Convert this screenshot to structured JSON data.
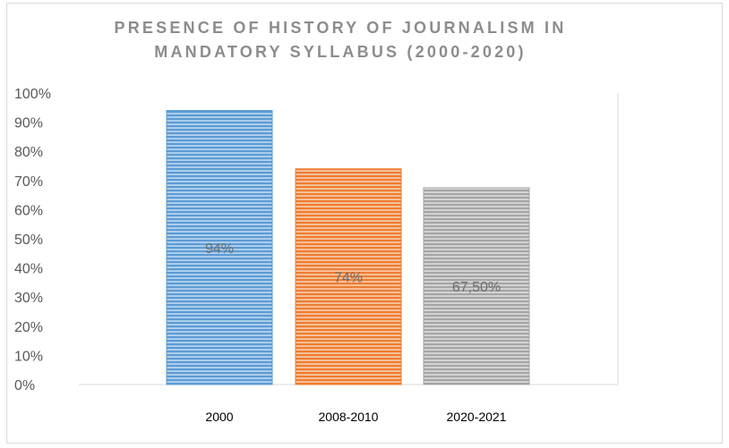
{
  "chart_data": {
    "type": "bar",
    "title_lines": [
      "PRESENCE OF HISTORY OF JOURNALISM IN",
      "MANDATORY SYLLABUS (2000-2020)"
    ],
    "categories": [
      "2000",
      "2008-2010",
      "2020-2021"
    ],
    "values": [
      94,
      74,
      67.5
    ],
    "data_labels": [
      "94%",
      "74%",
      "67,50%"
    ],
    "bar_colors": [
      "#5b9bd5",
      "#ed7d31",
      "#a5a5a5"
    ],
    "ylim": [
      0,
      100
    ],
    "y_ticks": [
      0,
      10,
      20,
      30,
      40,
      50,
      60,
      70,
      80,
      90,
      100
    ],
    "y_tick_labels": [
      "0%",
      "10%",
      "20%",
      "30%",
      "40%",
      "50%",
      "60%",
      "70%",
      "80%",
      "90%",
      "100%"
    ],
    "xlabel": "",
    "ylabel": "",
    "grid": false,
    "legend": "none",
    "bar_pattern": "horizontal-stripes"
  }
}
